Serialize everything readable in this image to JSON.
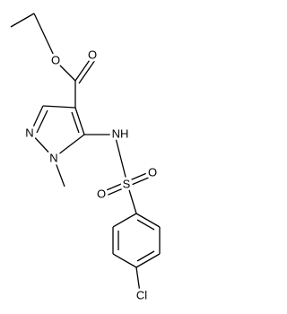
{
  "atoms": {
    "ester_oxygen": "O",
    "carbonyl_oxygen": "O",
    "ring_n2": "N",
    "ring_n1": "N",
    "amine": "NH",
    "sulfur": "S",
    "sulfonyl_oxygen_1": "O",
    "sulfonyl_oxygen_2": "O",
    "chlorine": "Cl"
  }
}
